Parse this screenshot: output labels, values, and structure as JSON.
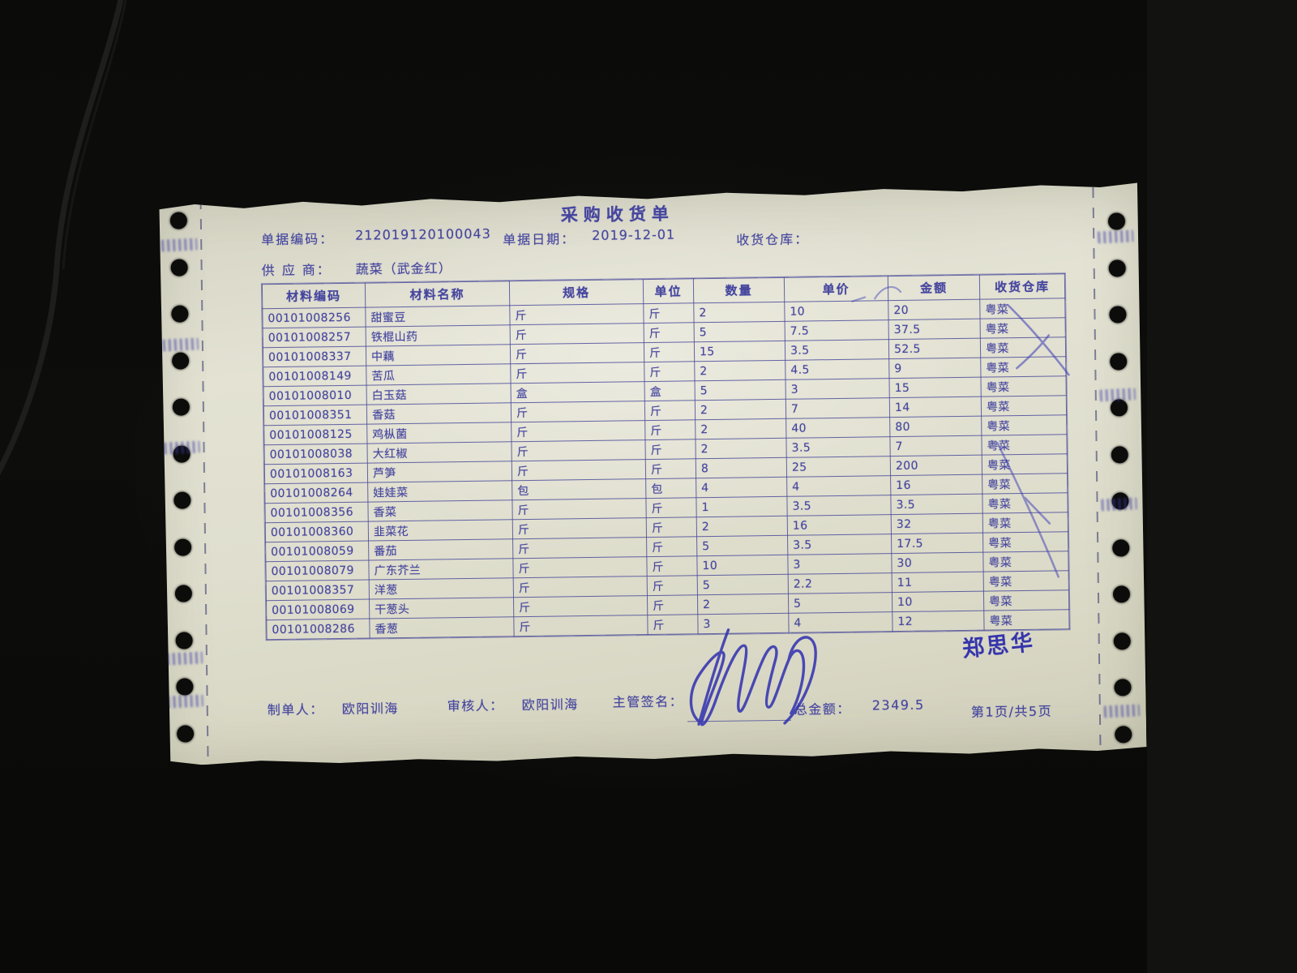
{
  "document": {
    "title": "采购收货单",
    "fields": {
      "doc_no_label": "单据编码：",
      "doc_no": "212019120100043",
      "date_label": "单据日期：",
      "date": "2019-12-01",
      "warehouse_label": "收货仓库：",
      "warehouse": "",
      "supplier_label": "供 应 商：",
      "supplier": "蔬菜（武金红）"
    },
    "table": {
      "headers": [
        "材料编码",
        "材料名称",
        "规格",
        "单位",
        "数量",
        "单价",
        "金额",
        "收货仓库"
      ],
      "rows": [
        [
          "00101008256",
          "甜蜜豆",
          "斤",
          "斤",
          "2",
          "10",
          "20",
          "粤菜"
        ],
        [
          "00101008257",
          "铁棍山药",
          "斤",
          "斤",
          "5",
          "7.5",
          "37.5",
          "粤菜"
        ],
        [
          "00101008337",
          "中藕",
          "斤",
          "斤",
          "15",
          "3.5",
          "52.5",
          "粤菜"
        ],
        [
          "00101008149",
          "苦瓜",
          "斤",
          "斤",
          "2",
          "4.5",
          "9",
          "粤菜"
        ],
        [
          "00101008010",
          "白玉菇",
          "盒",
          "盒",
          "5",
          "3",
          "15",
          "粤菜"
        ],
        [
          "00101008351",
          "香菇",
          "斤",
          "斤",
          "2",
          "7",
          "14",
          "粤菜"
        ],
        [
          "00101008125",
          "鸡枞菌",
          "斤",
          "斤",
          "2",
          "40",
          "80",
          "粤菜"
        ],
        [
          "00101008038",
          "大红椒",
          "斤",
          "斤",
          "2",
          "3.5",
          "7",
          "粤菜"
        ],
        [
          "00101008163",
          "芦笋",
          "斤",
          "斤",
          "8",
          "25",
          "200",
          "粤菜"
        ],
        [
          "00101008264",
          "娃娃菜",
          "包",
          "包",
          "4",
          "4",
          "16",
          "粤菜"
        ],
        [
          "00101008356",
          "香菜",
          "斤",
          "斤",
          "1",
          "3.5",
          "3.5",
          "粤菜"
        ],
        [
          "00101008360",
          "韭菜花",
          "斤",
          "斤",
          "2",
          "16",
          "32",
          "粤菜"
        ],
        [
          "00101008059",
          "番茄",
          "斤",
          "斤",
          "5",
          "3.5",
          "17.5",
          "粤菜"
        ],
        [
          "00101008079",
          "广东芥兰",
          "斤",
          "斤",
          "10",
          "3",
          "30",
          "粤菜"
        ],
        [
          "00101008357",
          "洋葱",
          "斤",
          "斤",
          "5",
          "2.2",
          "11",
          "粤菜"
        ],
        [
          "00101008069",
          "干葱头",
          "斤",
          "斤",
          "2",
          "5",
          "10",
          "粤菜"
        ],
        [
          "00101008286",
          "香葱",
          "斤",
          "斤",
          "3",
          "4",
          "12",
          "粤菜"
        ]
      ]
    },
    "footer": {
      "maker_label": "制单人：",
      "maker": "欧阳训海",
      "auditor_label": "审核人：",
      "auditor": "欧阳训海",
      "sign_label": "主管签名：",
      "handwritten_name": "郑思华",
      "total_label": "总金额：",
      "total": "2349.5",
      "page_info": "第1页/共5页"
    },
    "colors": {
      "ink_blue": "#45459f",
      "handwriting_blue": "#3434ad",
      "paper": "#e0dfcf",
      "background": "#0a0a09"
    }
  }
}
